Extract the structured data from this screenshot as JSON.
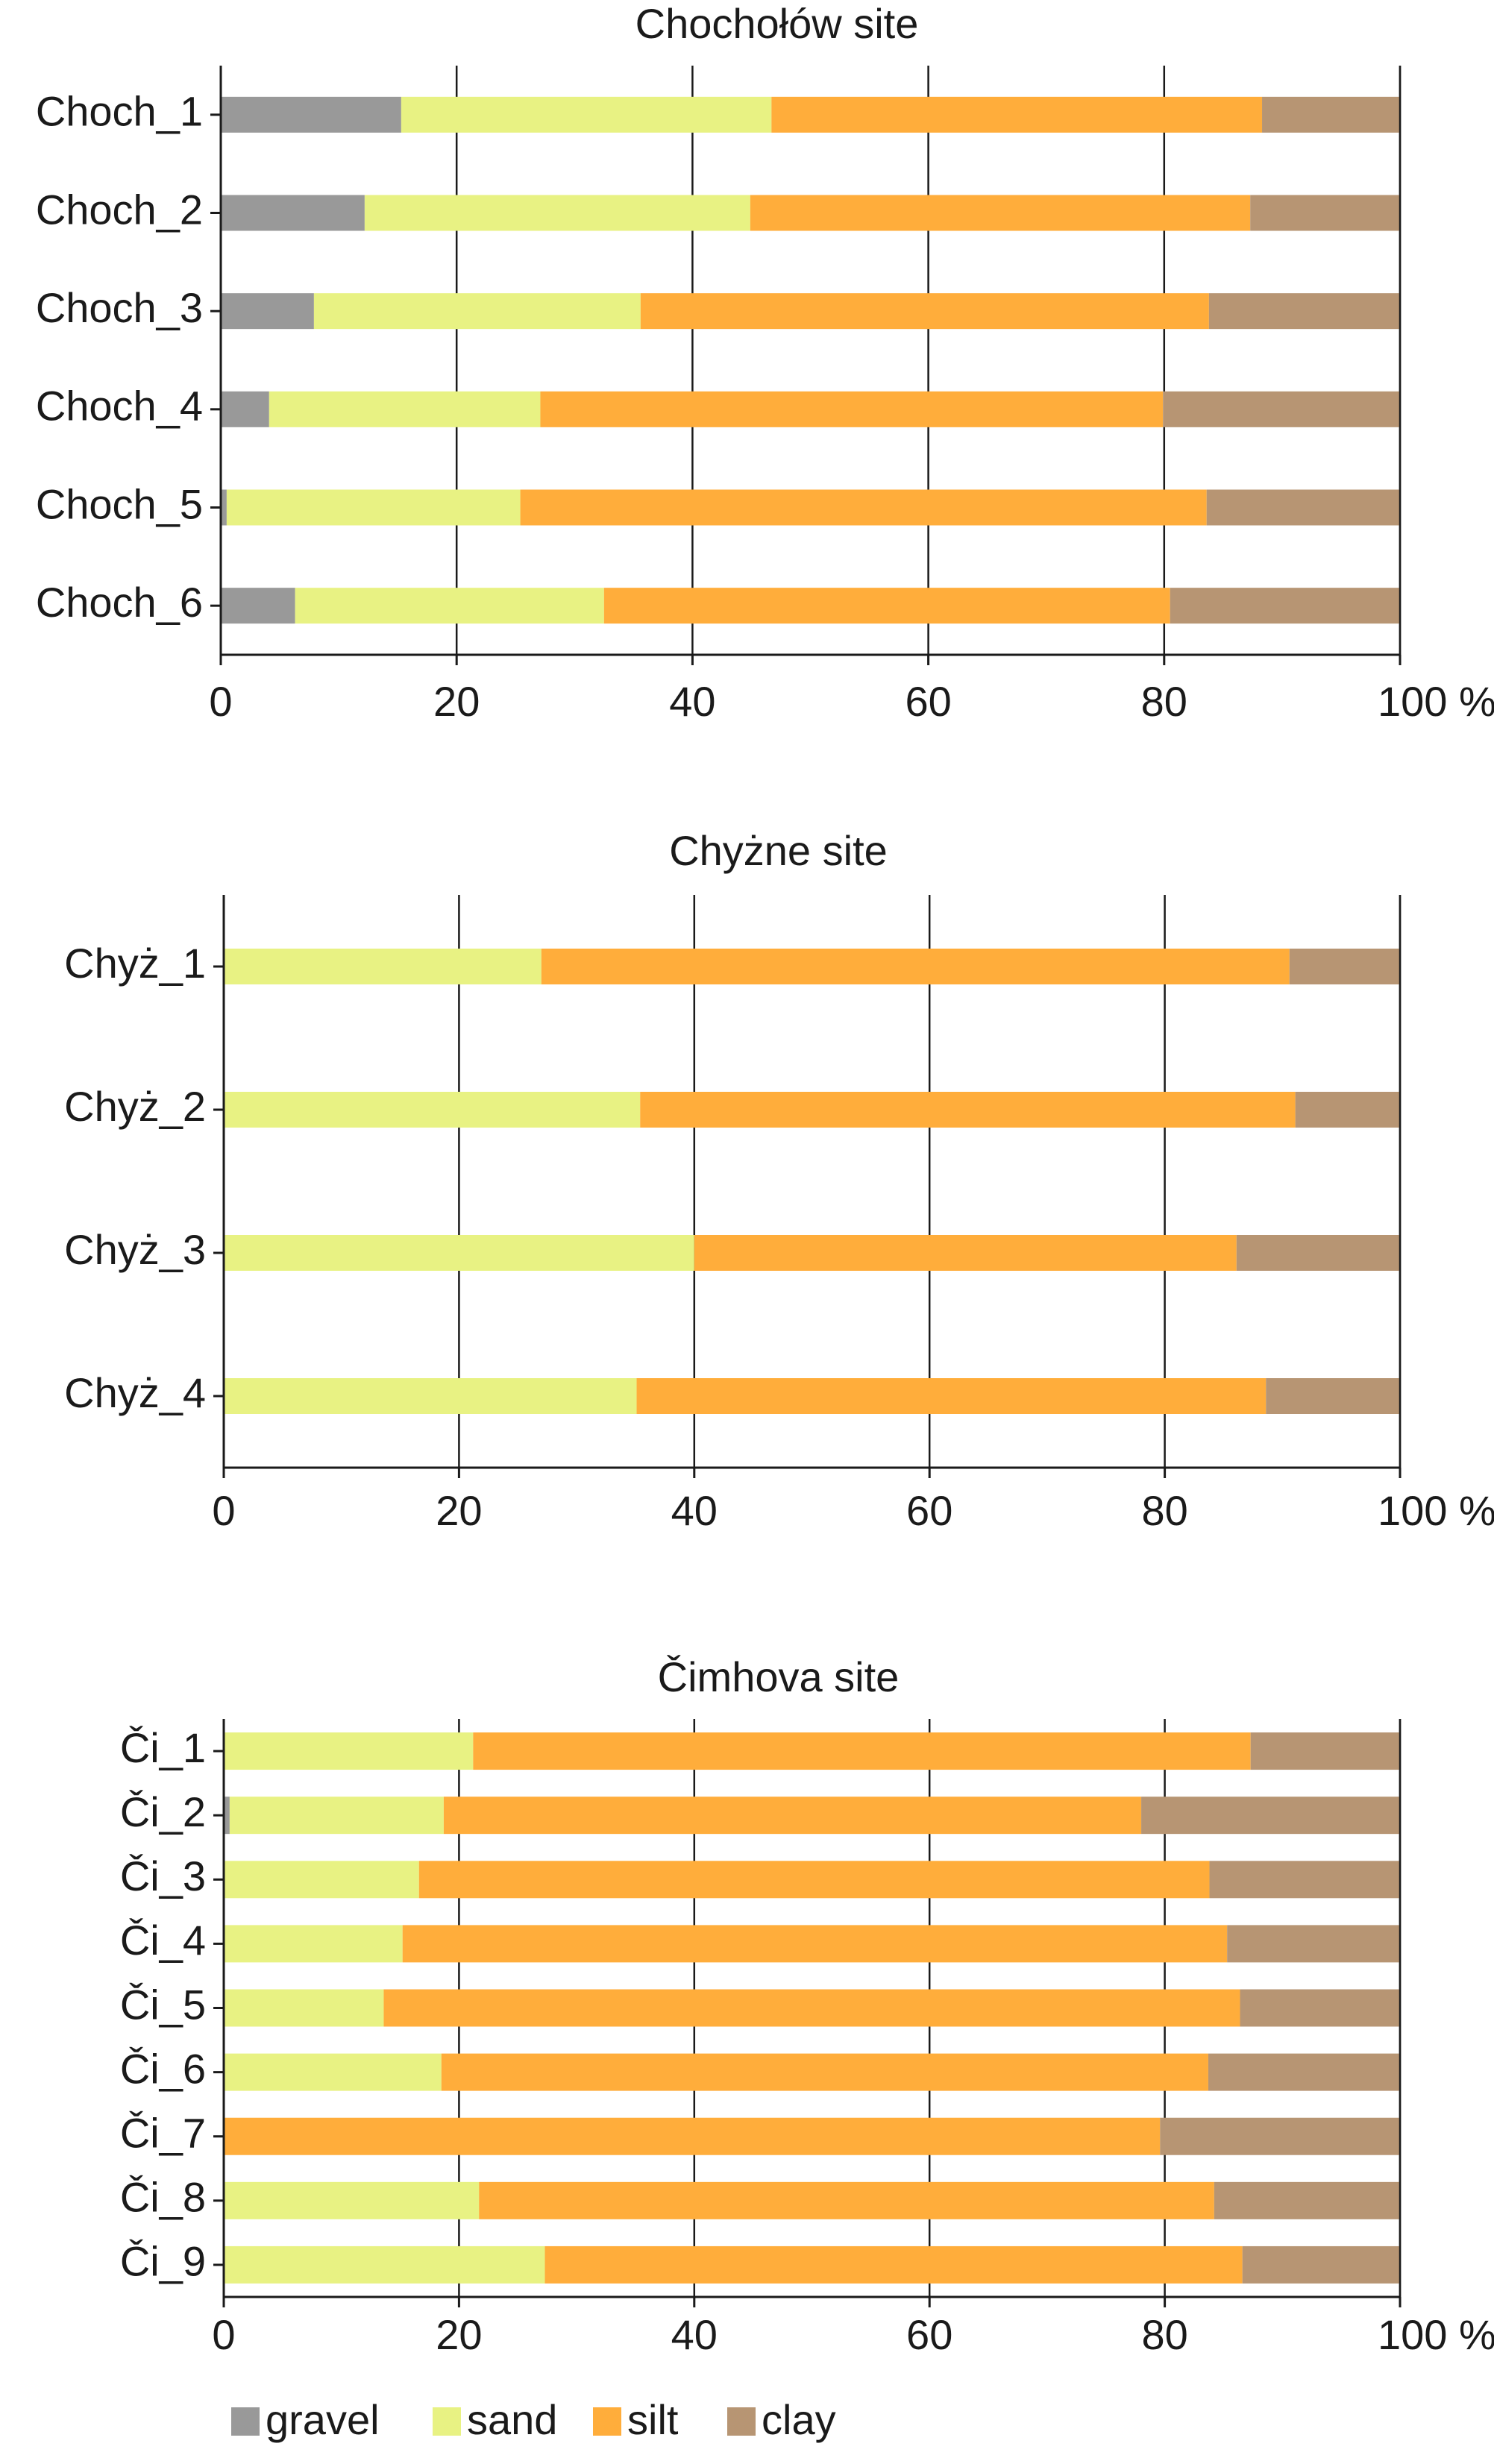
{
  "colors": {
    "gravel": "#999999",
    "sand": "#e8f283",
    "silt": "#ffad3b",
    "clay": "#b79573",
    "axis": "#1a1a1a"
  },
  "legend": [
    {
      "key": "gravel",
      "label": "gravel"
    },
    {
      "key": "sand",
      "label": "sand"
    },
    {
      "key": "silt",
      "label": "silt"
    },
    {
      "key": "clay",
      "label": "clay"
    }
  ],
  "chart_data": [
    {
      "type": "bar",
      "orientation": "horizontal",
      "stacked": true,
      "title": "Chochołów site",
      "xlabel": "",
      "ylabel": "",
      "xlim": [
        0,
        100
      ],
      "grid": true,
      "x_ticks": [
        "0",
        "20",
        "40",
        "60",
        "80",
        "100 %"
      ],
      "categories": [
        "Choch_1",
        "Choch_2",
        "Choch_3",
        "Choch_4",
        "Choch_5",
        "Choch_6"
      ],
      "series": [
        {
          "name": "gravel",
          "values": [
            15.3,
            12.2,
            7.9,
            4.1,
            0.5,
            6.3
          ]
        },
        {
          "name": "sand",
          "values": [
            31.4,
            32.7,
            27.7,
            23.0,
            24.9,
            26.2
          ]
        },
        {
          "name": "silt",
          "values": [
            41.6,
            42.4,
            48.2,
            52.8,
            58.2,
            48.0
          ]
        },
        {
          "name": "clay",
          "values": [
            11.7,
            12.7,
            16.2,
            20.1,
            16.4,
            19.5
          ]
        }
      ]
    },
    {
      "type": "bar",
      "orientation": "horizontal",
      "stacked": true,
      "title": "Chyżne site",
      "xlabel": "",
      "ylabel": "",
      "xlim": [
        0,
        100
      ],
      "grid": true,
      "x_ticks": [
        "0",
        "20",
        "40",
        "60",
        "80",
        "100 %"
      ],
      "categories": [
        "Chyż_1",
        "Chyż_2",
        "Chyż_3",
        "Chyż_4"
      ],
      "series": [
        {
          "name": "gravel",
          "values": [
            0,
            0,
            0,
            0
          ]
        },
        {
          "name": "sand",
          "values": [
            27.0,
            35.4,
            40.0,
            35.1
          ]
        },
        {
          "name": "silt",
          "values": [
            63.6,
            55.7,
            46.1,
            53.5
          ]
        },
        {
          "name": "clay",
          "values": [
            9.4,
            8.9,
            13.9,
            11.4
          ]
        }
      ]
    },
    {
      "type": "bar",
      "orientation": "horizontal",
      "stacked": true,
      "title": "Čimhova site",
      "xlabel": "",
      "ylabel": "",
      "xlim": [
        0,
        100
      ],
      "grid": true,
      "x_ticks": [
        "0",
        "20",
        "40",
        "60",
        "80",
        "100 %"
      ],
      "categories": [
        "Či_1",
        "Či_2",
        "Či_3",
        "Či_4",
        "Či_5",
        "Či_6",
        "Či_7",
        "Či_8",
        "Či_9"
      ],
      "series": [
        {
          "name": "gravel",
          "values": [
            0,
            0.5,
            0,
            0,
            0,
            0,
            0,
            0,
            0
          ]
        },
        {
          "name": "sand",
          "values": [
            21.2,
            18.2,
            16.6,
            15.2,
            13.6,
            18.5,
            0,
            21.7,
            27.3
          ]
        },
        {
          "name": "silt",
          "values": [
            66.1,
            59.3,
            67.2,
            70.1,
            72.8,
            65.2,
            79.6,
            62.5,
            59.3
          ]
        },
        {
          "name": "clay",
          "values": [
            12.7,
            22.0,
            16.2,
            14.7,
            13.6,
            16.3,
            20.4,
            15.8,
            13.4
          ]
        }
      ]
    }
  ]
}
